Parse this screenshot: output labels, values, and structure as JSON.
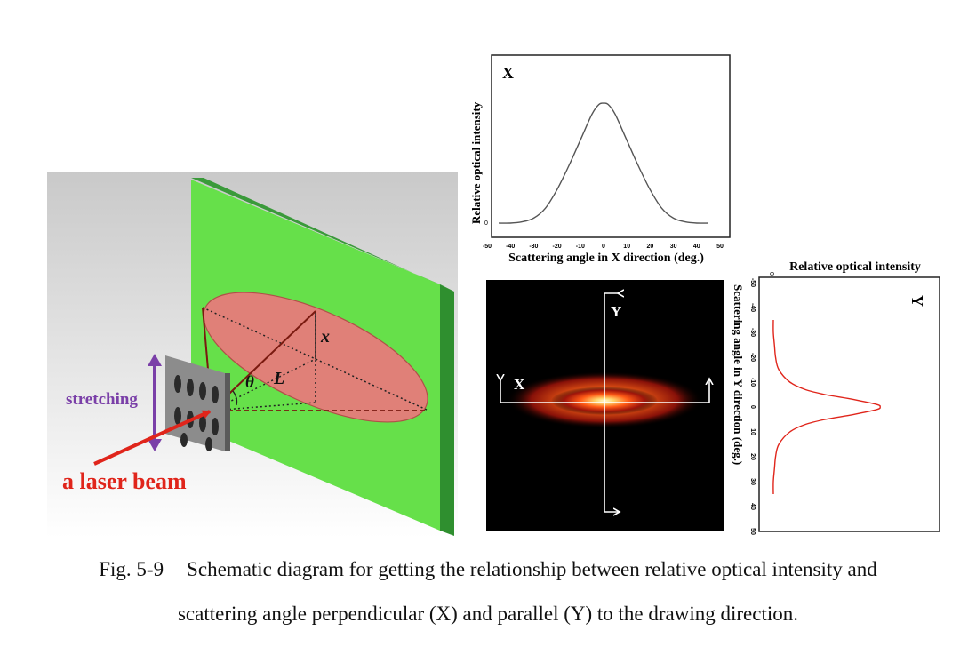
{
  "schematic": {
    "stretching_label": "stretching",
    "laser_label": "a laser beam",
    "x_label": "x",
    "L_label": "L",
    "theta_label": "θ"
  },
  "charts": {
    "x_profile": {
      "panel_label": "X",
      "ylabel": "Relative optical intensity",
      "xlabel": "Scattering angle in X direction (deg.)",
      "ytick": "0",
      "xticks": [
        "-50",
        "-40",
        "-30",
        "-20",
        "-10",
        "0",
        "10",
        "20",
        "30",
        "40",
        "50"
      ]
    },
    "y_profile": {
      "panel_label": "Y",
      "title": "Relative optical intensity",
      "side_label": "Scattering angle in Y direction (deg.)",
      "ytick": "0",
      "xticks": [
        "-50",
        "-40",
        "-30",
        "-20",
        "-10",
        "0",
        "10",
        "20",
        "30",
        "40",
        "50"
      ]
    }
  },
  "pattern": {
    "axis_x_label": "X",
    "axis_y_label": "Y"
  },
  "chart_data": [
    {
      "type": "line",
      "x": [
        -45,
        -40,
        -35,
        -30,
        -25,
        -20,
        -15,
        -10,
        -5,
        -2,
        0,
        2,
        5,
        10,
        15,
        20,
        25,
        30,
        35,
        40,
        45
      ],
      "y": [
        0.0,
        0.0,
        0.01,
        0.04,
        0.12,
        0.27,
        0.46,
        0.67,
        0.88,
        0.96,
        0.97,
        0.96,
        0.88,
        0.67,
        0.46,
        0.27,
        0.12,
        0.04,
        0.01,
        0.0,
        0.0
      ],
      "xlim": [
        -50,
        50
      ],
      "ylim": [
        0,
        1.05
      ],
      "xlabel": "Scattering angle in X direction (deg.)",
      "ylabel": "Relative optical intensity",
      "title": "X",
      "grid": false
    },
    {
      "type": "line",
      "x": [
        -35,
        -30,
        -25,
        -20,
        -15,
        -10,
        -7,
        -5,
        -3,
        -1,
        0,
        1,
        3,
        5,
        7,
        10,
        15,
        20,
        25,
        30,
        35
      ],
      "y": [
        0.0,
        0.0,
        0.01,
        0.02,
        0.05,
        0.15,
        0.29,
        0.47,
        0.73,
        0.94,
        0.97,
        0.94,
        0.73,
        0.47,
        0.29,
        0.15,
        0.05,
        0.02,
        0.01,
        0.0,
        0.0
      ],
      "xlim": [
        -50,
        50
      ],
      "ylim": [
        0,
        1.05
      ],
      "xlabel": "Scattering angle in Y direction (deg.)",
      "ylabel": "Relative optical intensity",
      "title": "Y",
      "grid": false
    }
  ],
  "caption": {
    "fig_no": "Fig. 5-9",
    "line1": "Schematic diagram for getting the relationship between relative optical intensity and",
    "line2": "scattering angle perpendicular (X) and parallel (Y) to the drawing direction."
  }
}
